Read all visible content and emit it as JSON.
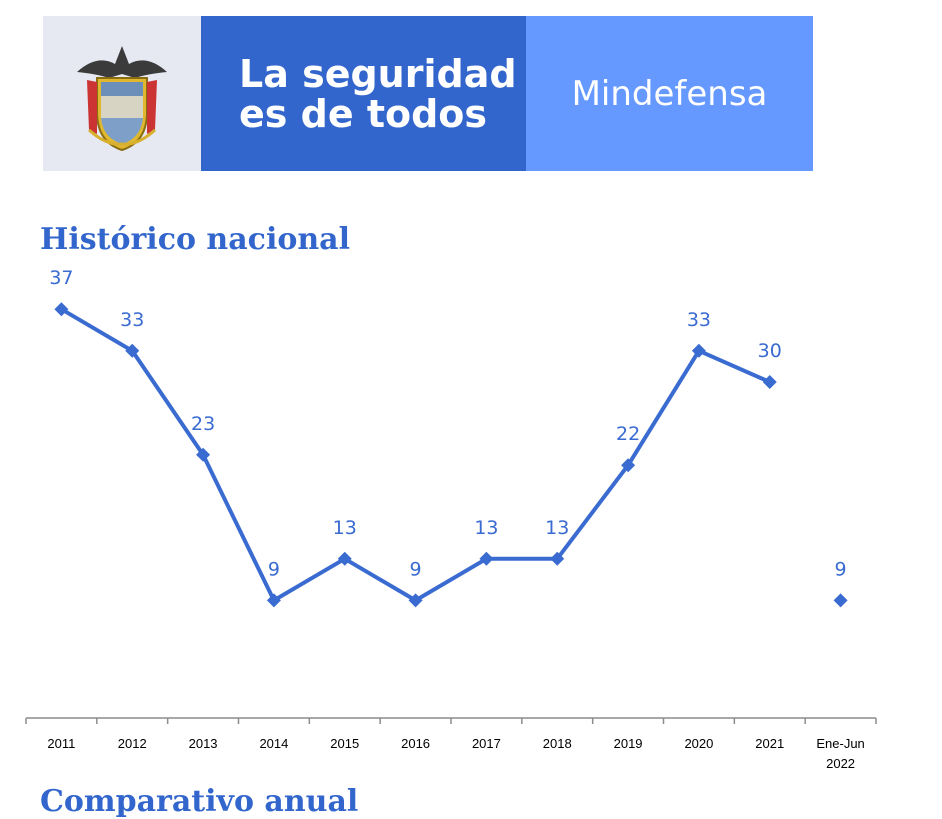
{
  "banner": {
    "slogan_line1": "La seguridad",
    "slogan_line2": "es de todos",
    "ministry": "Mindefensa",
    "crest_icon": "colombia-coat-of-arms-icon",
    "colors": {
      "crest_bg": "#e6e9f2",
      "slogan_bg": "#3366cc",
      "ministry_bg": "#6699ff"
    }
  },
  "section_title": "Histórico nacional",
  "next_section_title": "Comparativo anual",
  "chart_data": {
    "type": "line",
    "title": "Histórico nacional",
    "categories": [
      "2011",
      "2012",
      "2013",
      "2014",
      "2015",
      "2016",
      "2017",
      "2018",
      "2019",
      "2020",
      "2021",
      "Ene-Jun 2022"
    ],
    "category_lines": [
      [
        "2011"
      ],
      [
        "2012"
      ],
      [
        "2013"
      ],
      [
        "2014"
      ],
      [
        "2015"
      ],
      [
        "2016"
      ],
      [
        "2017"
      ],
      [
        "2018"
      ],
      [
        "2019"
      ],
      [
        "2020"
      ],
      [
        "2021"
      ],
      [
        "Ene-Jun",
        "2022"
      ]
    ],
    "values": [
      37,
      33,
      23,
      9,
      13,
      9,
      13,
      13,
      22,
      33,
      30,
      9
    ],
    "connected_segments": [
      [
        0,
        10
      ],
      [
        11,
        11
      ]
    ],
    "marker": "diamond",
    "data_labels": true,
    "ylim": [
      0,
      40
    ],
    "grid": false,
    "color": "#3a6bd0"
  }
}
